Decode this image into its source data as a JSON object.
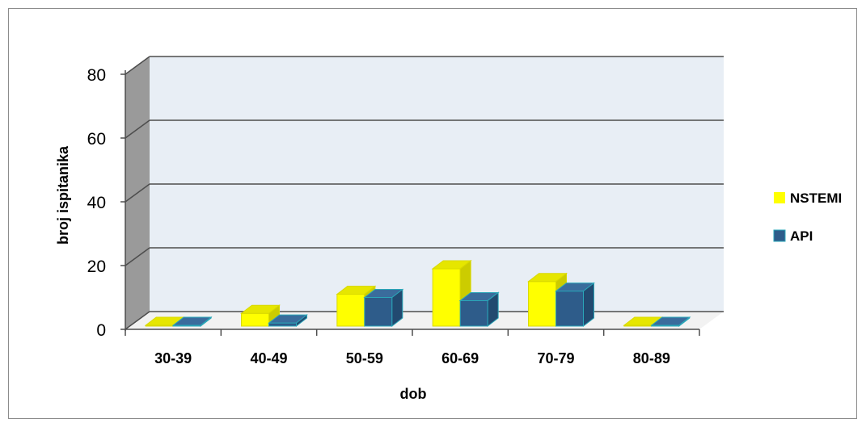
{
  "chart_data": {
    "type": "bar",
    "style": "3d-clustered-column",
    "title": "",
    "xlabel": "dob",
    "ylabel": "broj ispitanika",
    "categories": [
      "30-39",
      "40-49",
      "50-59",
      "60-69",
      "70-79",
      "80-89"
    ],
    "series": [
      {
        "name": "NSTEMI",
        "color": "#ffff00",
        "values": [
          0,
          5,
          11,
          19,
          15,
          1
        ]
      },
      {
        "name": "API",
        "color": "#2e5c8a",
        "values": [
          1,
          2,
          10,
          9,
          12,
          0
        ]
      }
    ],
    "yticks": [
      "0",
      "20",
      "40",
      "60",
      "80"
    ],
    "ylim": [
      0,
      80
    ],
    "grid": true,
    "legend_position": "right"
  }
}
